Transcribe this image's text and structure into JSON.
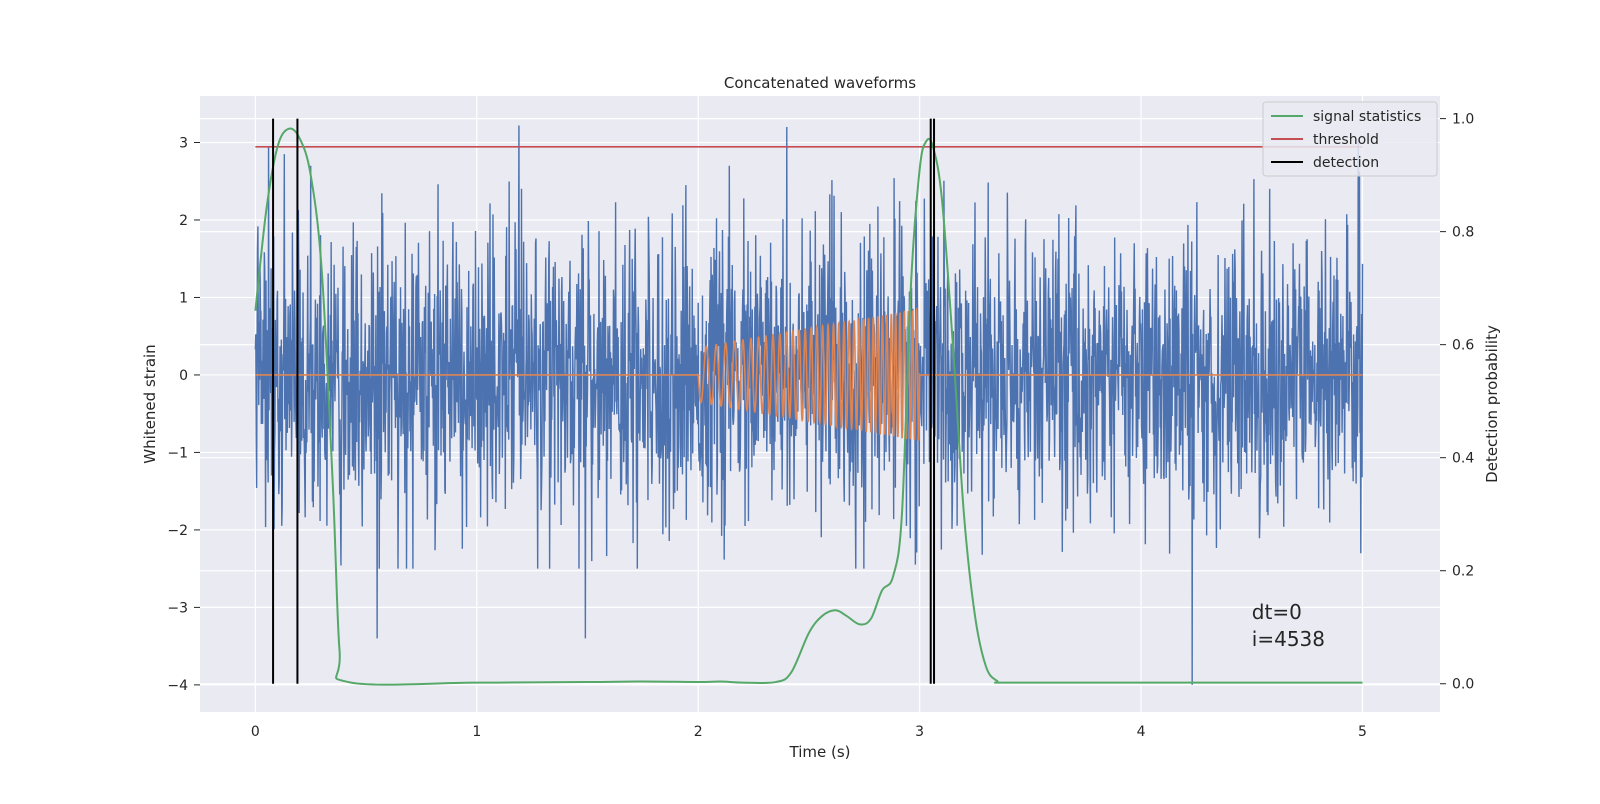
{
  "chart_data": {
    "type": "line",
    "title": "Concatenated waveforms",
    "xlabel": "Time (s)",
    "ylabel": "Whitened strain",
    "y2label": "Detection probability",
    "xlim": [
      -0.25,
      5.35
    ],
    "ylim": [
      -4.35,
      3.6
    ],
    "y2lim": [
      -0.05,
      1.04
    ],
    "xticks": [
      0,
      1,
      2,
      3,
      4,
      5
    ],
    "xtick_labels": [
      "0",
      "1",
      "2",
      "3",
      "4",
      "5"
    ],
    "yticks": [
      -4,
      -3,
      -2,
      -1,
      0,
      1,
      2,
      3
    ],
    "ytick_labels": [
      "−4",
      "−3",
      "−2",
      "−1",
      "0",
      "1",
      "2",
      "3"
    ],
    "y2ticks": [
      0.0,
      0.2,
      0.4,
      0.6,
      0.8,
      1.0
    ],
    "y2tick_labels": [
      "0.0",
      "0.2",
      "0.4",
      "0.6",
      "0.8",
      "1.0"
    ],
    "grid": true,
    "legend_position": "top-right",
    "colors": {
      "background": "#EAEAF2",
      "strain": "#4C72B0",
      "injection": "#DD8452",
      "signal_statistics": "#55A868",
      "threshold": "#C44E52",
      "detection": "#000000"
    },
    "series": [
      {
        "name": "",
        "role": "whitened strain (noise)",
        "axis": "left",
        "x_range": [
          0,
          5
        ],
        "y_envelope": [
          -2.5,
          2.7
        ],
        "peaks": [
          {
            "x": 0.06,
            "y": 2.95
          },
          {
            "x": 0.13,
            "y": 2.85
          },
          {
            "x": 1.19,
            "y": 3.22
          },
          {
            "x": 2.4,
            "y": 3.2
          },
          {
            "x": 4.98,
            "y": 3.05
          },
          {
            "x": 0.55,
            "y": -3.4
          },
          {
            "x": 1.49,
            "y": -3.4
          },
          {
            "x": 4.23,
            "y": -4.0
          }
        ]
      },
      {
        "name": "",
        "role": "injected chirp",
        "axis": "left",
        "x_range": [
          0,
          5
        ],
        "zero_outside": true,
        "chirp": {
          "start": 2.0,
          "end": 3.0,
          "amp_start": 0.35,
          "amp_end": 0.85,
          "freq_start_hz": 20,
          "freq_end_hz": 55
        }
      },
      {
        "name": "signal statistics",
        "axis": "right",
        "x": [
          0.0,
          0.05,
          0.1,
          0.15,
          0.2,
          0.25,
          0.3,
          0.35,
          0.38,
          0.42,
          1.0,
          1.5,
          1.75,
          2.0,
          2.1,
          2.2,
          2.35,
          2.42,
          2.5,
          2.56,
          2.62,
          2.67,
          2.73,
          2.78,
          2.83,
          2.88,
          2.92,
          2.96,
          3.0,
          3.03,
          3.06,
          3.1,
          3.15,
          3.2,
          3.25,
          3.3,
          3.35,
          3.4,
          4.0,
          5.0
        ],
        "y": [
          0.66,
          0.84,
          0.95,
          0.982,
          0.965,
          0.9,
          0.73,
          0.35,
          0.06,
          0.003,
          0.002,
          0.003,
          0.004,
          0.003,
          0.004,
          0.002,
          0.003,
          0.02,
          0.09,
          0.12,
          0.13,
          0.12,
          0.105,
          0.115,
          0.165,
          0.19,
          0.3,
          0.7,
          0.91,
          0.96,
          0.95,
          0.86,
          0.6,
          0.3,
          0.12,
          0.03,
          0.005,
          0.002,
          0.002,
          0.002
        ]
      },
      {
        "name": "threshold",
        "axis": "right",
        "x": [
          0.0,
          5.0
        ],
        "y": [
          0.95,
          0.95
        ]
      },
      {
        "name": "detection",
        "axis": "right",
        "vertical_lines_x": [
          0.08,
          0.19,
          3.05,
          3.065
        ],
        "y_range": [
          0.0,
          1.0
        ]
      }
    ],
    "annotations": [
      {
        "text": "dt=0",
        "x": 4.5,
        "y": -3.15
      },
      {
        "text": "i=4538",
        "x": 4.5,
        "y": -3.5
      }
    ]
  }
}
